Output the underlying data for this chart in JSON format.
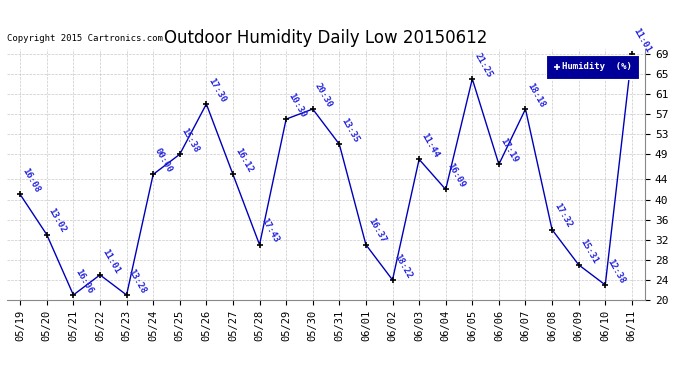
{
  "title": "Outdoor Humidity Daily Low 20150612",
  "copyright": "Copyright 2015 Cartronics.com",
  "legend_label": "Humidity  (%)",
  "dates": [
    "05/19",
    "05/20",
    "05/21",
    "05/22",
    "05/23",
    "05/24",
    "05/25",
    "05/26",
    "05/27",
    "05/28",
    "05/29",
    "05/30",
    "05/31",
    "06/01",
    "06/02",
    "06/03",
    "06/04",
    "06/05",
    "06/06",
    "06/07",
    "06/08",
    "06/09",
    "06/10",
    "06/11"
  ],
  "values": [
    41,
    33,
    21,
    25,
    21,
    45,
    49,
    59,
    45,
    31,
    56,
    58,
    51,
    31,
    24,
    48,
    42,
    64,
    47,
    58,
    34,
    27,
    23,
    69
  ],
  "labels": [
    "16:08",
    "13:02",
    "16:06",
    "11:01",
    "13:28",
    "00:00",
    "15:38",
    "17:30",
    "16:12",
    "17:43",
    "10:30",
    "20:30",
    "13:35",
    "16:37",
    "18:22",
    "11:44",
    "16:09",
    "21:25",
    "17:19",
    "18:18",
    "17:32",
    "15:31",
    "12:38",
    "11:01"
  ],
  "line_color": "#0000bb",
  "marker_color": "#000000",
  "bg_color": "#ffffff",
  "plot_bg_color": "#ffffff",
  "grid_color": "#bbbbbb",
  "title_color": "#000000",
  "label_color": "#2222dd",
  "copyright_color": "#000000",
  "ylim": [
    20,
    70
  ],
  "yticks": [
    20,
    24,
    28,
    32,
    36,
    40,
    44,
    49,
    53,
    57,
    61,
    65,
    69
  ],
  "ylabel_fontsize": 8,
  "xlabel_fontsize": 7.5,
  "title_fontsize": 12,
  "label_fontsize": 6.5,
  "legend_bg": "#000099",
  "legend_text_color": "#ffffff"
}
